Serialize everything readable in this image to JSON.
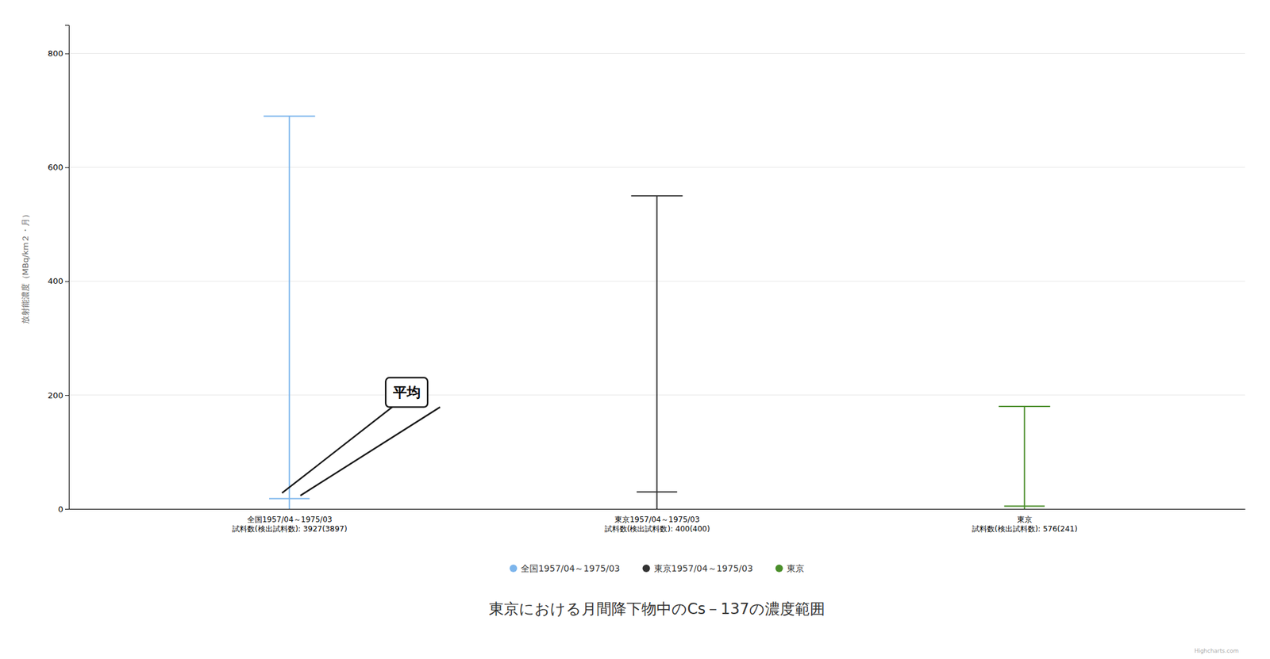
{
  "chart_data": {
    "type": "range",
    "title": "東京における月間降下物中のCs－137の濃度範囲",
    "ylabel": "放射能濃度（MBq/km２・月）",
    "annotation": "平均",
    "watermark": "Highcharts.com",
    "categories": [
      "全国1957/04～1975/03\n試料数(検出試料数): 3927(3897)",
      "東京1957/04～1975/03\n試料数(検出試料数): 400(400)",
      "東京\n試料数(検出試料数): 576(241)"
    ],
    "series": [
      {
        "name": "全国1957/04～1975/03",
        "color": "#7cb5ec",
        "values": [
          18,
          null,
          null
        ],
        "low": [
          0,
          null,
          null
        ],
        "high": [
          690,
          null,
          null
        ]
      },
      {
        "name": "東京1957/04～1975/03",
        "color": "#333333",
        "values": [
          null,
          30,
          null
        ],
        "low": [
          null,
          0,
          null
        ],
        "high": [
          null,
          550,
          null
        ]
      },
      {
        "name": "東京",
        "color": "#4a8e2a",
        "values": [
          null,
          null,
          5
        ],
        "low": [
          null,
          null,
          0
        ],
        "high": [
          null,
          null,
          180
        ]
      }
    ],
    "ylim": [
      0,
      850
    ],
    "yticks": [
      0,
      200,
      400,
      600,
      800
    ],
    "grid": true,
    "legend": "bottom"
  }
}
